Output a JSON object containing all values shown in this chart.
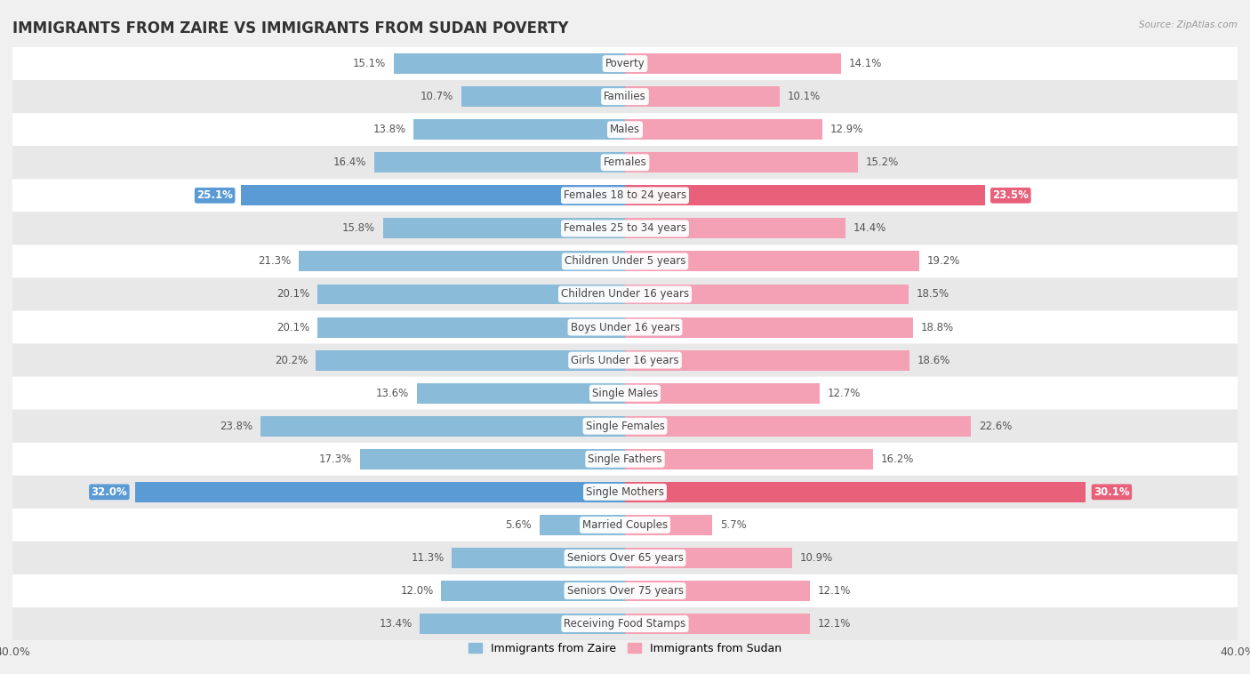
{
  "title": "IMMIGRANTS FROM ZAIRE VS IMMIGRANTS FROM SUDAN POVERTY",
  "source": "Source: ZipAtlas.com",
  "categories": [
    "Poverty",
    "Families",
    "Males",
    "Females",
    "Females 18 to 24 years",
    "Females 25 to 34 years",
    "Children Under 5 years",
    "Children Under 16 years",
    "Boys Under 16 years",
    "Girls Under 16 years",
    "Single Males",
    "Single Females",
    "Single Fathers",
    "Single Mothers",
    "Married Couples",
    "Seniors Over 65 years",
    "Seniors Over 75 years",
    "Receiving Food Stamps"
  ],
  "zaire_values": [
    15.1,
    10.7,
    13.8,
    16.4,
    25.1,
    15.8,
    21.3,
    20.1,
    20.1,
    20.2,
    13.6,
    23.8,
    17.3,
    32.0,
    5.6,
    11.3,
    12.0,
    13.4
  ],
  "sudan_values": [
    14.1,
    10.1,
    12.9,
    15.2,
    23.5,
    14.4,
    19.2,
    18.5,
    18.8,
    18.6,
    12.7,
    22.6,
    16.2,
    30.1,
    5.7,
    10.9,
    12.1,
    12.1
  ],
  "zaire_color": "#8abbd8",
  "sudan_color": "#f4a0b5",
  "zaire_label": "Immigrants from Zaire",
  "sudan_label": "Immigrants from Sudan",
  "xlim": 40.0,
  "background_color": "#f0f0f0",
  "row_light_color": "#ffffff",
  "row_dark_color": "#e8e8e8",
  "title_fontsize": 12,
  "bar_height": 0.62,
  "highlight_rows": [
    4,
    13
  ],
  "highlight_zaire_color": "#5b9bd5",
  "highlight_sudan_color": "#e8607a",
  "value_label_fontsize": 8.5,
  "category_fontsize": 8.5
}
